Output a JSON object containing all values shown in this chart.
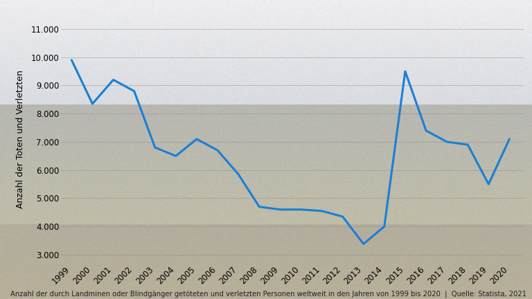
{
  "years": [
    1999,
    2000,
    2001,
    2002,
    2003,
    2004,
    2005,
    2006,
    2007,
    2008,
    2009,
    2010,
    2011,
    2012,
    2013,
    2014,
    2015,
    2016,
    2017,
    2018,
    2019,
    2020
  ],
  "values": [
    9900,
    8350,
    9200,
    8800,
    6800,
    6500,
    7100,
    6700,
    5850,
    4700,
    4600,
    4600,
    4550,
    4350,
    3380,
    4000,
    9500,
    7400,
    7000,
    6900,
    5500,
    7100
  ],
  "ylabel": "Anzahl der Toten und Verletzten",
  "yticks": [
    3000,
    4000,
    5000,
    6000,
    7000,
    8000,
    9000,
    10000,
    11000
  ],
  "ylim": [
    2700,
    11500
  ],
  "line_color": "#1a7fd4",
  "line_width": 2.2,
  "caption": "Anzahl der durch Landminen oder Blindgänger getöteten und verletzten Personen weltweit in den Jahren von 1999 bis 2020  |  Quelle: Statista, 2021",
  "caption_fontsize": 7.2,
  "ylabel_fontsize": 9,
  "tick_fontsize": 8.5,
  "grid_color": "#888888",
  "grid_alpha": 0.6,
  "grid_linewidth": 0.5,
  "photo_top_color": "#dde4e8",
  "photo_mid_color": "#b8bfb5",
  "photo_bot_color": "#a8ae9f"
}
